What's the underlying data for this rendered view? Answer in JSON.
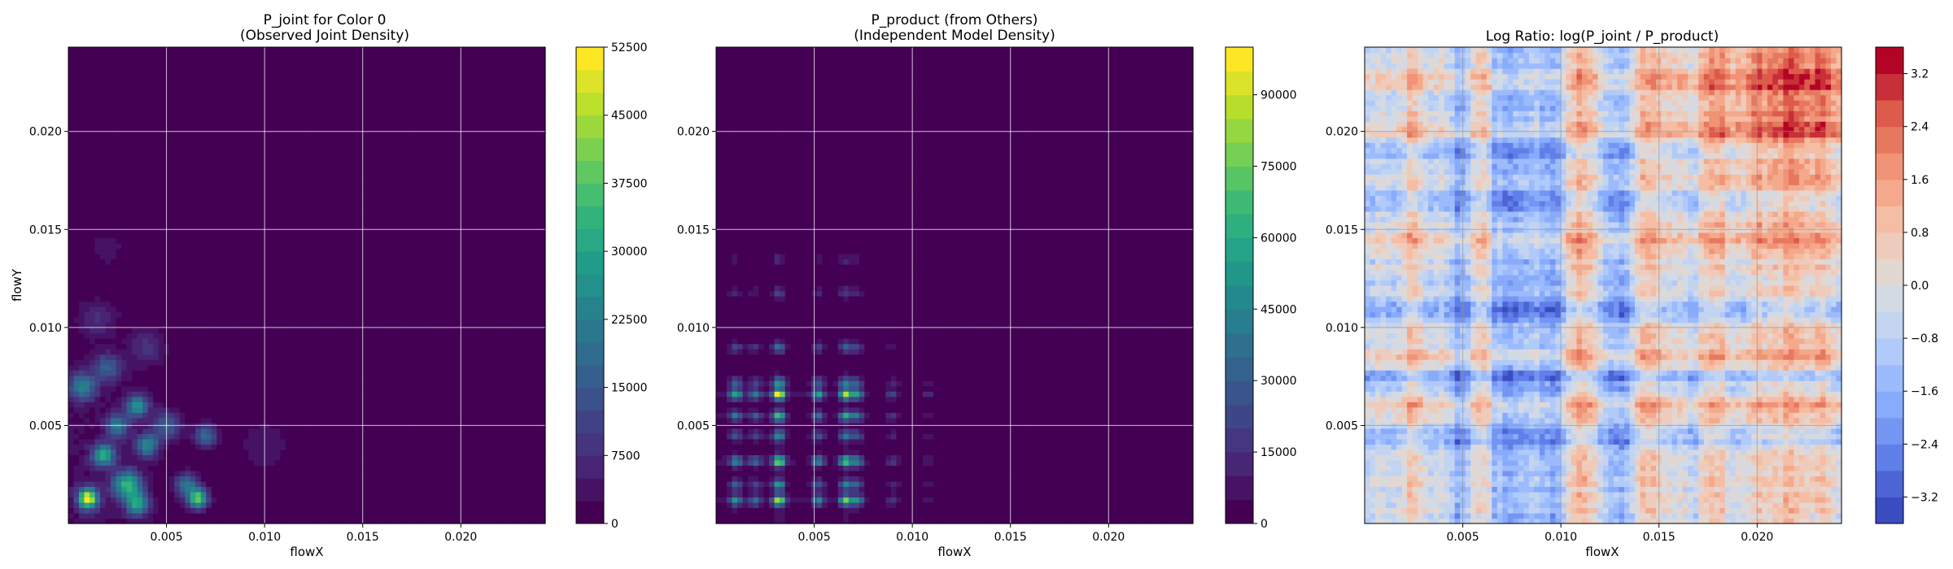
{
  "chart_data": [
    {
      "type": "heatmap",
      "title": "P_joint for Color 0",
      "subtitle": "(Observed Joint Density)",
      "xlabel": "flowX",
      "ylabel": "flowY",
      "xlim": [
        0.0,
        0.0243
      ],
      "ylim": [
        0.0,
        0.0243
      ],
      "xticks": [
        0.005,
        0.01,
        0.015,
        0.02
      ],
      "xtick_labels": [
        "0.005",
        "0.010",
        "0.015",
        "0.020"
      ],
      "yticks": [
        0.005,
        0.01,
        0.015,
        0.02
      ],
      "ytick_labels": [
        "0.005",
        "0.010",
        "0.015",
        "0.020"
      ],
      "grid": true,
      "colormap": "viridis",
      "colorbar": {
        "min": 0,
        "max": 52500,
        "levels": [
          0,
          2500,
          5000,
          7500,
          10000,
          12500,
          15000,
          17500,
          20000,
          22500,
          25000,
          27500,
          30000,
          32500,
          35000,
          37500,
          40000,
          42500,
          45000,
          47500,
          50000,
          52500
        ],
        "tick_values": [
          0,
          7500,
          15000,
          22500,
          30000,
          37500,
          45000,
          52500
        ],
        "tick_labels": [
          "0",
          "7500",
          "15000",
          "22500",
          "30000",
          "37500",
          "45000",
          "52500"
        ]
      },
      "blobs": [
        {
          "x": 0.001,
          "y": 0.0013,
          "s": 0.00035,
          "v": 50000
        },
        {
          "x": 0.0018,
          "y": 0.0035,
          "s": 0.0004,
          "v": 30000
        },
        {
          "x": 0.003,
          "y": 0.002,
          "s": 0.0005,
          "v": 32000
        },
        {
          "x": 0.004,
          "y": 0.004,
          "s": 0.0004,
          "v": 24000
        },
        {
          "x": 0.0035,
          "y": 0.006,
          "s": 0.0004,
          "v": 26000
        },
        {
          "x": 0.006,
          "y": 0.002,
          "s": 0.0004,
          "v": 20000
        },
        {
          "x": 0.0066,
          "y": 0.0013,
          "s": 0.00035,
          "v": 38000
        },
        {
          "x": 0.0007,
          "y": 0.007,
          "s": 0.0005,
          "v": 22000
        },
        {
          "x": 0.002,
          "y": 0.008,
          "s": 0.0005,
          "v": 15000
        },
        {
          "x": 0.005,
          "y": 0.005,
          "s": 0.0005,
          "v": 16000
        },
        {
          "x": 0.007,
          "y": 0.0045,
          "s": 0.0004,
          "v": 18000
        },
        {
          "x": 0.0015,
          "y": 0.0105,
          "s": 0.0006,
          "v": 7000
        },
        {
          "x": 0.004,
          "y": 0.009,
          "s": 0.0006,
          "v": 8000
        },
        {
          "x": 0.002,
          "y": 0.014,
          "s": 0.0007,
          "v": 3000
        },
        {
          "x": 0.01,
          "y": 0.004,
          "s": 0.0012,
          "v": 3500
        },
        {
          "x": 0.0035,
          "y": 0.001,
          "s": 0.0004,
          "v": 28000
        },
        {
          "x": 0.0025,
          "y": 0.005,
          "s": 0.0004,
          "v": 22000
        }
      ]
    },
    {
      "type": "heatmap",
      "title": "P_product (from Others)",
      "subtitle": "(Independent Model Density)",
      "xlabel": "flowX",
      "ylabel": "",
      "xlim": [
        0.0,
        0.0243
      ],
      "ylim": [
        0.0,
        0.0243
      ],
      "xticks": [
        0.005,
        0.01,
        0.015,
        0.02
      ],
      "xtick_labels": [
        "0.005",
        "0.010",
        "0.015",
        "0.020"
      ],
      "yticks": [
        0.005,
        0.01,
        0.015,
        0.02
      ],
      "ytick_labels": [
        "0.005",
        "0.010",
        "0.015",
        "0.020"
      ],
      "grid": true,
      "colormap": "viridis",
      "colorbar": {
        "min": 0,
        "max": 100000,
        "levels": [
          0,
          5000,
          10000,
          15000,
          20000,
          25000,
          30000,
          35000,
          40000,
          45000,
          50000,
          55000,
          60000,
          65000,
          70000,
          75000,
          80000,
          85000,
          90000,
          95000,
          100000
        ],
        "tick_values": [
          0,
          15000,
          30000,
          45000,
          60000,
          75000,
          90000
        ],
        "tick_labels": [
          "0",
          "15000",
          "30000",
          "45000",
          "60000",
          "75000",
          "90000"
        ]
      },
      "x_marginal_peaks": [
        {
          "x": 0.001,
          "w": 1.0
        },
        {
          "x": 0.002,
          "w": 0.7
        },
        {
          "x": 0.0032,
          "w": 1.9
        },
        {
          "x": 0.0052,
          "w": 1.0
        },
        {
          "x": 0.0066,
          "w": 1.6
        },
        {
          "x": 0.0072,
          "w": 1.0
        },
        {
          "x": 0.009,
          "w": 0.4
        },
        {
          "x": 0.0108,
          "w": 0.2
        }
      ],
      "y_marginal_peaks": [
        {
          "y": 0.0012,
          "w": 1.6
        },
        {
          "y": 0.002,
          "w": 0.9
        },
        {
          "y": 0.0032,
          "w": 1.6
        },
        {
          "y": 0.0045,
          "w": 0.9
        },
        {
          "y": 0.0055,
          "w": 1.3
        },
        {
          "y": 0.0066,
          "w": 1.9
        },
        {
          "y": 0.0072,
          "w": 1.0
        },
        {
          "y": 0.009,
          "w": 0.7
        },
        {
          "y": 0.0118,
          "w": 0.4
        },
        {
          "y": 0.0135,
          "w": 0.25
        }
      ]
    },
    {
      "type": "heatmap",
      "title": "Log Ratio: log(P_joint / P_product)",
      "subtitle": "",
      "xlabel": "flowX",
      "ylabel": "",
      "xlim": [
        0.0,
        0.0243
      ],
      "ylim": [
        0.0,
        0.0243
      ],
      "xticks": [
        0.005,
        0.01,
        0.015,
        0.02
      ],
      "xtick_labels": [
        "0.005",
        "0.010",
        "0.015",
        "0.020"
      ],
      "yticks": [
        0.005,
        0.01,
        0.015,
        0.02
      ],
      "ytick_labels": [
        "0.005",
        "0.010",
        "0.015",
        "0.020"
      ],
      "grid": true,
      "colormap": "coolwarm",
      "colorbar": {
        "min": -3.6,
        "max": 3.6,
        "levels": [
          -3.6,
          -3.2,
          -2.8,
          -2.4,
          -2.0,
          -1.6,
          -1.2,
          -0.8,
          -0.4,
          0.0,
          0.4,
          0.8,
          1.2,
          1.6,
          2.0,
          2.4,
          2.8,
          3.2,
          3.6
        ],
        "tick_values": [
          -3.2,
          -2.4,
          -1.6,
          -0.8,
          0.0,
          0.8,
          1.6,
          2.4,
          3.2
        ],
        "tick_labels": [
          "−3.2",
          "−2.4",
          "−1.6",
          "−0.8",
          "0.0",
          "0.8",
          "1.6",
          "2.4",
          "3.2"
        ]
      },
      "red_bands_x": [
        0.0025,
        0.006,
        0.011,
        0.0145,
        0.018,
        0.02,
        0.0215,
        0.023
      ],
      "blue_bands_x": [
        0.005,
        0.0068,
        0.008,
        0.0095,
        0.013
      ],
      "red_bands_y": [
        0.006,
        0.0085,
        0.0145,
        0.02,
        0.0225
      ],
      "blue_bands_y": [
        0.0045,
        0.0075,
        0.011,
        0.0165,
        0.019
      ]
    }
  ]
}
